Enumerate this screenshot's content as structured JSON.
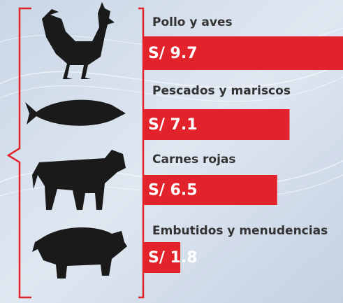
{
  "chart_data": {
    "type": "bar",
    "orientation": "horizontal",
    "categories": [
      "Pollo y aves",
      "Pescados y mariscos",
      "Carnes rojas",
      "Embutidos y menudencias"
    ],
    "values": [
      9.7,
      7.1,
      6.5,
      1.8
    ],
    "value_labels": [
      "S/ 9.7",
      "S/ 7.1",
      "S/ 6.5",
      "S/ 1.8"
    ],
    "color": "#e3232b"
  }
}
